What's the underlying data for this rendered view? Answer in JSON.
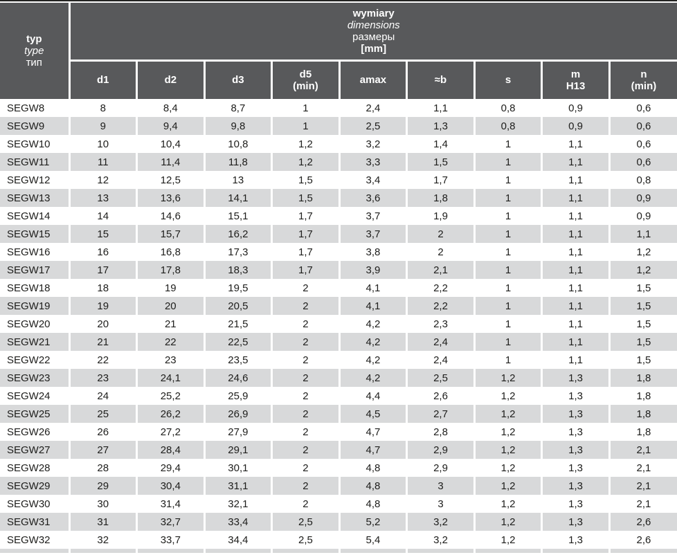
{
  "table": {
    "corner": {
      "line1": "typ",
      "line2": "type",
      "line3": "тип"
    },
    "group_header": {
      "line1": "wymiary",
      "line2": "dimensions",
      "line3": "размеры",
      "line4": "[mm]"
    },
    "columns": [
      {
        "id": "d1",
        "lines": [
          "d1"
        ]
      },
      {
        "id": "d2",
        "lines": [
          "d2"
        ]
      },
      {
        "id": "d3",
        "lines": [
          "d3"
        ]
      },
      {
        "id": "d5",
        "lines": [
          "d5",
          "(min)"
        ]
      },
      {
        "id": "amax",
        "lines": [
          "amax"
        ]
      },
      {
        "id": "b",
        "lines": [
          "≈b"
        ]
      },
      {
        "id": "s",
        "lines": [
          "s"
        ]
      },
      {
        "id": "m",
        "lines": [
          "m",
          "H13"
        ]
      },
      {
        "id": "n",
        "lines": [
          "n",
          "(min)"
        ]
      }
    ],
    "rows": [
      {
        "type": "SEGW8",
        "values": [
          "8",
          "8,4",
          "8,7",
          "1",
          "2,4",
          "1,1",
          "0,8",
          "0,9",
          "0,6"
        ]
      },
      {
        "type": "SEGW9",
        "values": [
          "9",
          "9,4",
          "9,8",
          "1",
          "2,5",
          "1,3",
          "0,8",
          "0,9",
          "0,6"
        ]
      },
      {
        "type": "SEGW10",
        "values": [
          "10",
          "10,4",
          "10,8",
          "1,2",
          "3,2",
          "1,4",
          "1",
          "1,1",
          "0,6"
        ]
      },
      {
        "type": "SEGW11",
        "values": [
          "11",
          "11,4",
          "11,8",
          "1,2",
          "3,3",
          "1,5",
          "1",
          "1,1",
          "0,6"
        ]
      },
      {
        "type": "SEGW12",
        "values": [
          "12",
          "12,5",
          "13",
          "1,5",
          "3,4",
          "1,7",
          "1",
          "1,1",
          "0,8"
        ]
      },
      {
        "type": "SEGW13",
        "values": [
          "13",
          "13,6",
          "14,1",
          "1,5",
          "3,6",
          "1,8",
          "1",
          "1,1",
          "0,9"
        ]
      },
      {
        "type": "SEGW14",
        "values": [
          "14",
          "14,6",
          "15,1",
          "1,7",
          "3,7",
          "1,9",
          "1",
          "1,1",
          "0,9"
        ]
      },
      {
        "type": "SEGW15",
        "values": [
          "15",
          "15,7",
          "16,2",
          "1,7",
          "3,7",
          "2",
          "1",
          "1,1",
          "1,1"
        ]
      },
      {
        "type": "SEGW16",
        "values": [
          "16",
          "16,8",
          "17,3",
          "1,7",
          "3,8",
          "2",
          "1",
          "1,1",
          "1,2"
        ]
      },
      {
        "type": "SEGW17",
        "values": [
          "17",
          "17,8",
          "18,3",
          "1,7",
          "3,9",
          "2,1",
          "1",
          "1,1",
          "1,2"
        ]
      },
      {
        "type": "SEGW18",
        "values": [
          "18",
          "19",
          "19,5",
          "2",
          "4,1",
          "2,2",
          "1",
          "1,1",
          "1,5"
        ]
      },
      {
        "type": "SEGW19",
        "values": [
          "19",
          "20",
          "20,5",
          "2",
          "4,1",
          "2,2",
          "1",
          "1,1",
          "1,5"
        ]
      },
      {
        "type": "SEGW20",
        "values": [
          "20",
          "21",
          "21,5",
          "2",
          "4,2",
          "2,3",
          "1",
          "1,1",
          "1,5"
        ]
      },
      {
        "type": "SEGW21",
        "values": [
          "21",
          "22",
          "22,5",
          "2",
          "4,2",
          "2,4",
          "1",
          "1,1",
          "1,5"
        ]
      },
      {
        "type": "SEGW22",
        "values": [
          "22",
          "23",
          "23,5",
          "2",
          "4,2",
          "2,4",
          "1",
          "1,1",
          "1,5"
        ]
      },
      {
        "type": "SEGW23",
        "values": [
          "23",
          "24,1",
          "24,6",
          "2",
          "4,2",
          "2,5",
          "1,2",
          "1,3",
          "1,8"
        ]
      },
      {
        "type": "SEGW24",
        "values": [
          "24",
          "25,2",
          "25,9",
          "2",
          "4,4",
          "2,6",
          "1,2",
          "1,3",
          "1,8"
        ]
      },
      {
        "type": "SEGW25",
        "values": [
          "25",
          "26,2",
          "26,9",
          "2",
          "4,5",
          "2,7",
          "1,2",
          "1,3",
          "1,8"
        ]
      },
      {
        "type": "SEGW26",
        "values": [
          "26",
          "27,2",
          "27,9",
          "2",
          "4,7",
          "2,8",
          "1,2",
          "1,3",
          "1,8"
        ]
      },
      {
        "type": "SEGW27",
        "values": [
          "27",
          "28,4",
          "29,1",
          "2",
          "4,7",
          "2,9",
          "1,2",
          "1,3",
          "2,1"
        ]
      },
      {
        "type": "SEGW28",
        "values": [
          "28",
          "29,4",
          "30,1",
          "2",
          "4,8",
          "2,9",
          "1,2",
          "1,3",
          "2,1"
        ]
      },
      {
        "type": "SEGW29",
        "values": [
          "29",
          "30,4",
          "31,1",
          "2",
          "4,8",
          "3",
          "1,2",
          "1,3",
          "2,1"
        ]
      },
      {
        "type": "SEGW30",
        "values": [
          "30",
          "31,4",
          "32,1",
          "2",
          "4,8",
          "3",
          "1,2",
          "1,3",
          "2,1"
        ]
      },
      {
        "type": "SEGW31",
        "values": [
          "31",
          "32,7",
          "33,4",
          "2,5",
          "5,2",
          "3,2",
          "1,2",
          "1,3",
          "2,6"
        ]
      },
      {
        "type": "SEGW32",
        "values": [
          "32",
          "33,7",
          "34,4",
          "2,5",
          "5,4",
          "3,2",
          "1,2",
          "1,3",
          "2,6"
        ]
      }
    ]
  },
  "colors": {
    "header_bg": "#58595b",
    "zebra_row_bg": "#d8d9da",
    "row_bg": "#ffffff",
    "body_text": "#1d1d1b",
    "header_text": "#ffffff"
  }
}
